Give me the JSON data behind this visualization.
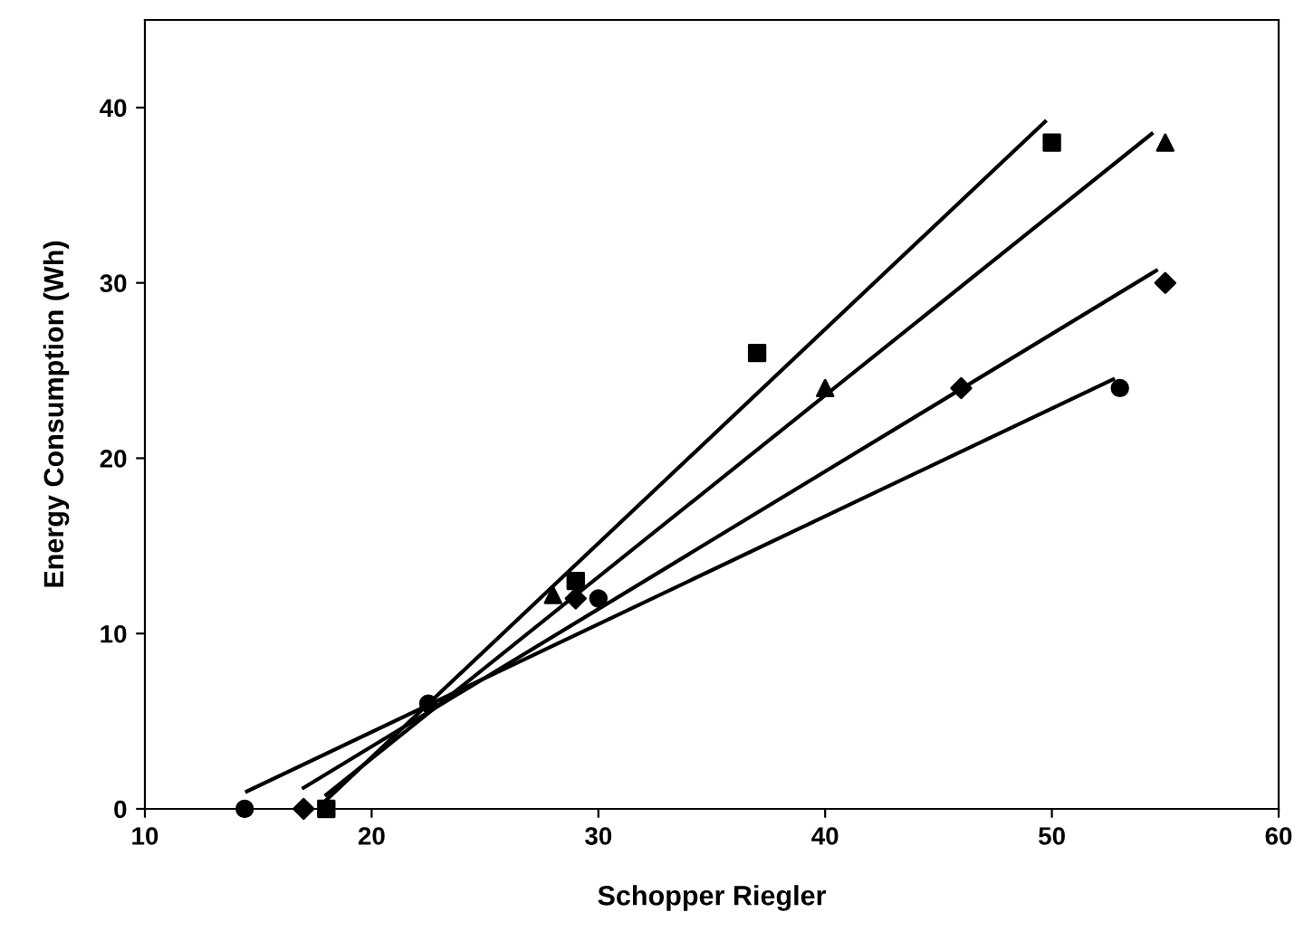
{
  "chart_data": {
    "type": "scatter",
    "xlabel": "Schopper Riegler",
    "ylabel": "Energy Consumption (Wh)",
    "xlim": [
      10,
      60
    ],
    "ylim": [
      0,
      45
    ],
    "xticks": [
      10,
      20,
      30,
      40,
      50,
      60
    ],
    "yticks": [
      0,
      10,
      20,
      30,
      40
    ],
    "grid": false,
    "legend": false,
    "series": [
      {
        "marker": "circle",
        "color": "#000000",
        "x": [
          14.4,
          22.5,
          30,
          53
        ],
        "values": [
          0,
          6,
          12,
          24
        ]
      },
      {
        "marker": "diamond",
        "color": "#000000",
        "x": [
          17,
          29,
          46,
          55
        ],
        "values": [
          0,
          12,
          24,
          30
        ]
      },
      {
        "marker": "square",
        "color": "#000000",
        "x": [
          18,
          29,
          37,
          50
        ],
        "values": [
          0,
          13,
          26,
          38
        ]
      },
      {
        "marker": "triangle",
        "color": "#000000",
        "x": [
          28,
          40,
          55
        ],
        "values": [
          12.2,
          24,
          38
        ]
      },
      {
        "type": "line",
        "marker": "none",
        "color": "#000000",
        "x": [
          14.5,
          52.7
        ],
        "values": [
          1,
          24.5
        ]
      },
      {
        "type": "line",
        "marker": "none",
        "color": "#000000",
        "x": [
          17,
          54.6
        ],
        "values": [
          1.2,
          30.7
        ]
      },
      {
        "type": "line",
        "marker": "none",
        "color": "#000000",
        "x": [
          18,
          49.7
        ],
        "values": [
          0.5,
          39.2
        ]
      },
      {
        "type": "line",
        "marker": "none",
        "color": "#000000",
        "x": [
          18,
          54.4
        ],
        "values": [
          0.8,
          38.5
        ]
      }
    ]
  }
}
